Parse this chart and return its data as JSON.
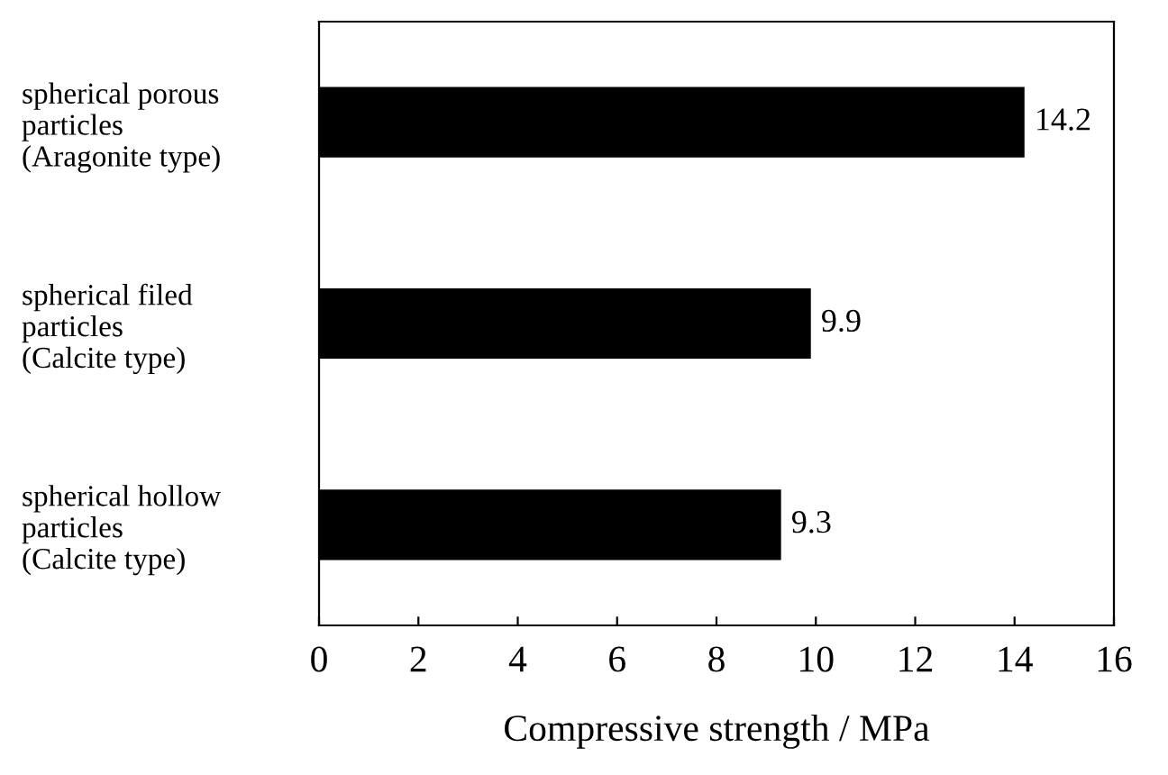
{
  "chart_data": {
    "type": "bar",
    "orientation": "horizontal",
    "xlabel": "Compressive strength / MPa",
    "categories": [
      "spherical porous\nparticles\n(Aragonite type)",
      "spherical filed\nparticles\n(Calcite type)",
      "spherical hollow\nparticles\n(Calcite type)"
    ],
    "values": [
      14.2,
      9.9,
      9.3
    ],
    "color": "#000000",
    "data_labels": true,
    "xlim": [
      0,
      16
    ],
    "xticks": [
      0,
      2,
      4,
      6,
      8,
      10,
      12,
      14,
      16
    ],
    "grid": false
  }
}
